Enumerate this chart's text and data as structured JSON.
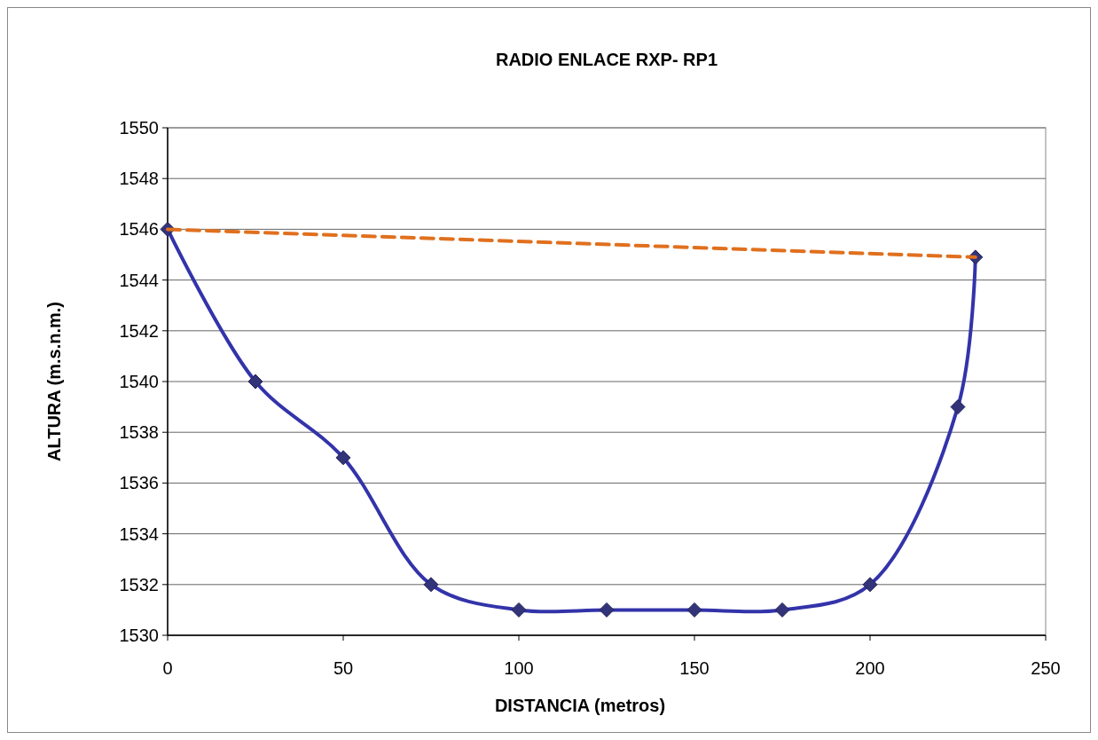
{
  "chart_data": {
    "type": "line",
    "title": "RADIO ENLACE RXP- RP1",
    "xlabel": "DISTANCIA (metros)",
    "ylabel": "ALTURA (m.s.n.m.)",
    "xlim": [
      0,
      250
    ],
    "xticks": [
      0,
      50,
      100,
      150,
      200,
      250
    ],
    "ylim": [
      1530,
      1550
    ],
    "yticks": [
      1530,
      1532,
      1534,
      1536,
      1538,
      1540,
      1542,
      1544,
      1546,
      1548,
      1550
    ],
    "grid": "y",
    "series": [
      {
        "color": "#3333aa",
        "x": [
          0,
          25,
          50,
          75,
          100,
          125,
          150,
          175,
          200,
          225,
          230
        ],
        "values": [
          1546,
          1540,
          1537,
          1532,
          1531,
          1531,
          1531,
          1531,
          1532,
          1539,
          1544.9
        ],
        "marker": "diamond",
        "line_style": "solid"
      },
      {
        "color": "#e0701e",
        "x": [
          0,
          230
        ],
        "values": [
          1546,
          1544.9
        ],
        "marker": "none",
        "line_style": "dashed"
      }
    ]
  }
}
